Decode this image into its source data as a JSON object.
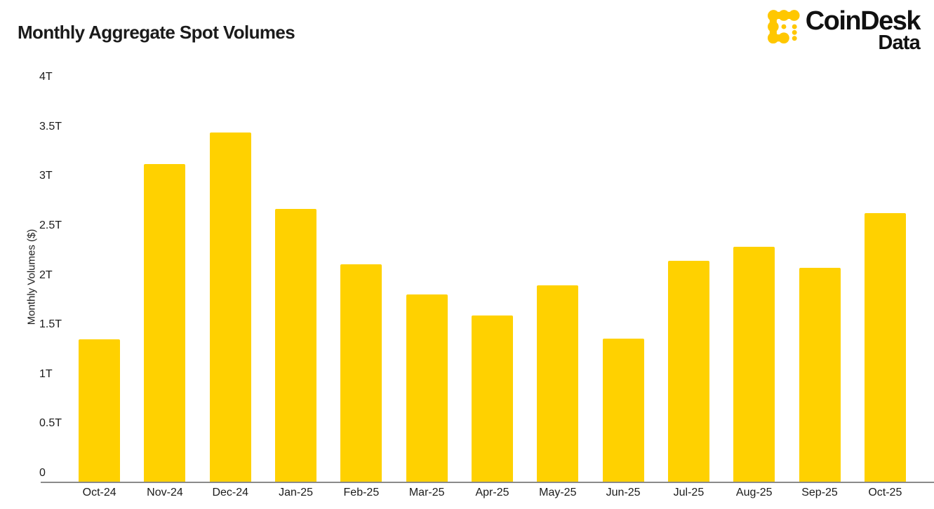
{
  "header": {
    "title": "Monthly Aggregate Spot Volumes"
  },
  "brand": {
    "name": "CoinDesk",
    "sub": "Data",
    "icon": "coindesk-dots-icon",
    "icon_color": "#FFC700",
    "text_color": "#111111"
  },
  "chart_data": {
    "type": "bar",
    "title": "Monthly Aggregate Spot Volumes",
    "categories": [
      "Oct-24",
      "Nov-24",
      "Dec-24",
      "Jan-25",
      "Feb-25",
      "Mar-25",
      "Apr-25",
      "May-25",
      "Jun-25",
      "Jul-25",
      "Aug-25",
      "Sep-25",
      "Oct-25"
    ],
    "values": [
      1.42,
      3.17,
      3.48,
      2.72,
      2.17,
      1.87,
      1.66,
      1.96,
      1.43,
      2.2,
      2.34,
      2.13,
      2.68
    ],
    "unit": "T",
    "xlabel": "",
    "ylabel": "Monthly Volumes ($)",
    "ylim": [
      0,
      4
    ],
    "ytick_step": 0.5,
    "ytick_labels": [
      "0",
      "0.5T",
      "1T",
      "1.5T",
      "2T",
      "2.5T",
      "3T",
      "3.5T",
      "4T"
    ],
    "bar_color": "#FFD100",
    "axis_line_color": "#8a8a8a",
    "grid": false,
    "legend": false
  }
}
